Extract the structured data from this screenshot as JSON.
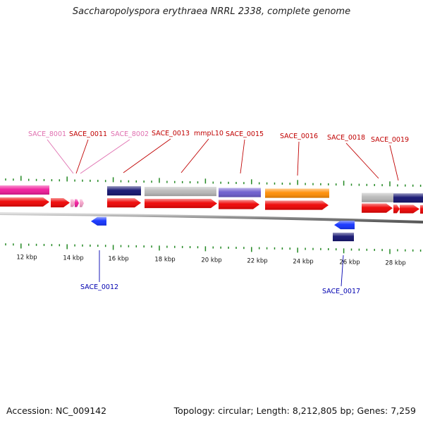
{
  "title": "Saccharopolyspora erythraea NRRL 2338, complete genome",
  "footer": {
    "accession": "Accession: NC_009142",
    "summary": "Topology: circular; Length: 8,212,805 bp; Genes: 7,259"
  },
  "colors": {
    "pink": "#f0189a",
    "pink_light": "#f4a0c8",
    "red": "#ee0000",
    "navy": "#10106e",
    "gray": "#b8b8b8",
    "purple": "#6a5acd",
    "orange": "#ff8c00",
    "blue": "#1030ff",
    "tick": "#228822",
    "label_red": "#c00000",
    "label_pink": "#e070b0",
    "label_blue": "#0000b0"
  },
  "axis_labels": [
    "12 kbp",
    "14 kbp",
    "16 kbp",
    "18 kbp",
    "20 kbp",
    "22 kbp",
    "24 kbp",
    "26 kbp",
    "28 kbp"
  ],
  "gene_labels": [
    {
      "text": "SACE_8001",
      "color": "label_pink"
    },
    {
      "text": "SACE_0011",
      "color": "label_red"
    },
    {
      "text": "SACE_8002",
      "color": "label_pink"
    },
    {
      "text": "SACE_0013",
      "color": "label_red"
    },
    {
      "text": "mmpL10",
      "color": "label_red"
    },
    {
      "text": "SACE_0015",
      "color": "label_red"
    },
    {
      "text": "SACE_0016",
      "color": "label_red"
    },
    {
      "text": "SACE_0018",
      "color": "label_red"
    },
    {
      "text": "SACE_0019",
      "color": "label_red"
    },
    {
      "text": "SACE_0012",
      "color": "label_blue"
    },
    {
      "text": "SACE_0017",
      "color": "label_blue"
    }
  ]
}
